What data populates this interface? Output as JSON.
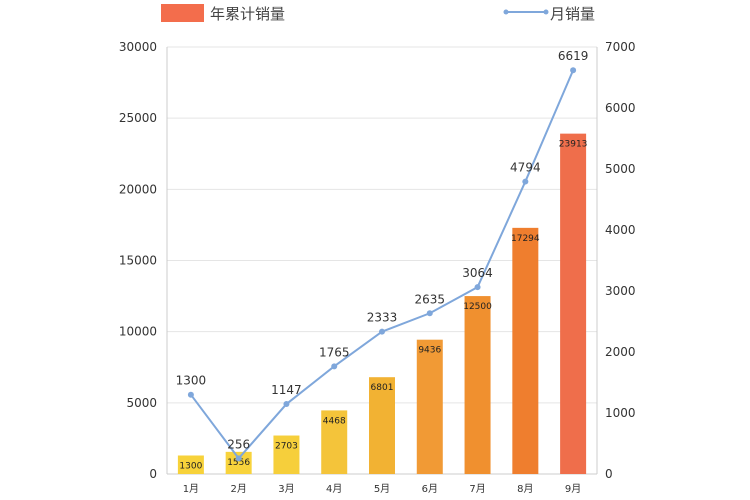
{
  "chart_data": {
    "type": "bar",
    "categories": [
      "1月",
      "2月",
      "3月",
      "4月",
      "5月",
      "6月",
      "7月",
      "8月",
      "9月"
    ],
    "series": [
      {
        "name": "年累计销量",
        "type": "bar",
        "axis": "left",
        "values": [
          1300,
          1556,
          2703,
          4468,
          6801,
          9436,
          12500,
          17294,
          23913
        ]
      },
      {
        "name": "月销量",
        "type": "line",
        "axis": "right",
        "values": [
          1300,
          256,
          1147,
          1765,
          2333,
          2635,
          3064,
          4794,
          6619
        ]
      }
    ],
    "y_left": {
      "ylim": [
        0,
        30000
      ],
      "ticks": [
        0,
        5000,
        10000,
        15000,
        20000,
        25000,
        30000
      ]
    },
    "y_right": {
      "ylim": [
        0,
        7000
      ],
      "ticks": [
        0,
        1000,
        2000,
        3000,
        4000,
        5000,
        6000,
        7000
      ]
    },
    "grid": true,
    "legend": "top",
    "colors": {
      "bars": [
        "#f7d23a",
        "#f8d33c",
        "#f6cf3b",
        "#f4c43a",
        "#f2b233",
        "#f19a35",
        "#f0902f",
        "#ef7e2e",
        "#ef6e4b"
      ],
      "legend_bar": "#f36d4c",
      "line": "#7fa7db",
      "grid": "#e5e5e5",
      "axis": "#cccccc"
    }
  }
}
